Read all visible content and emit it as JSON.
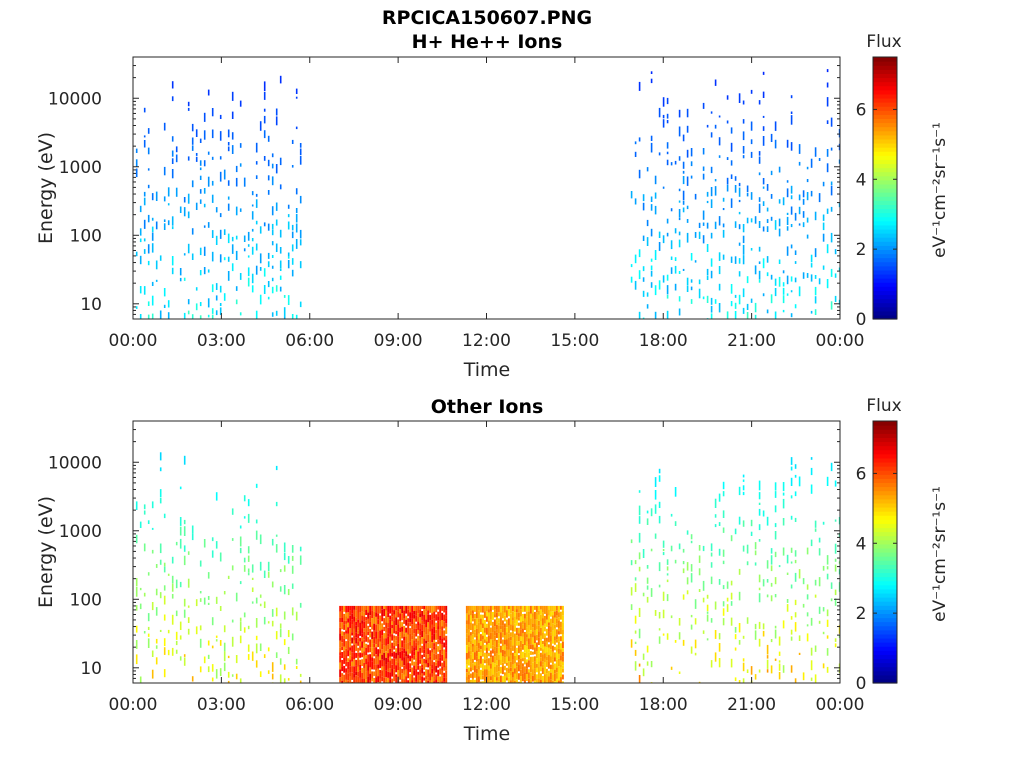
{
  "chart_data": [
    {
      "type": "heatmap",
      "title_lines": [
        "RPCICA150607.PNG",
        "H+ He++ Ions"
      ],
      "xlabel": "Time",
      "ylabel": "Energy (eV)",
      "x_tick_labels": [
        "00:00",
        "03:00",
        "06:00",
        "09:00",
        "12:00",
        "15:00",
        "18:00",
        "21:00",
        "00:00"
      ],
      "x_range_hours": [
        0,
        24
      ],
      "y_scale": "log",
      "y_range": [
        6,
        40000
      ],
      "y_ticks": [
        10,
        100,
        1000,
        10000
      ],
      "y_tick_labels": [
        "10",
        "100",
        "1000",
        "10000"
      ],
      "colorbar": {
        "title": "Flux",
        "unit": "eV⁻¹cm⁻²sr⁻¹s⁻¹",
        "range": [
          0,
          7.5
        ],
        "ticks": [
          0,
          2,
          4,
          6
        ],
        "tick_labels": [
          "0",
          "2",
          "4",
          "6"
        ],
        "colormap": "jet"
      },
      "data_regions": [
        {
          "t_start": 0.1,
          "t_end": 5.8,
          "e_min": 6,
          "e_max": 30000,
          "flux_low": 1.2,
          "flux_high": 3.0,
          "style": "sparse"
        },
        {
          "t_start": 16.9,
          "t_end": 24.0,
          "e_min": 6,
          "e_max": 30000,
          "flux_low": 1.2,
          "flux_high": 3.0,
          "style": "sparse"
        }
      ]
    },
    {
      "type": "heatmap",
      "title_lines": [
        "Other Ions"
      ],
      "xlabel": "Time",
      "ylabel": "Energy (eV)",
      "x_tick_labels": [
        "00:00",
        "03:00",
        "06:00",
        "09:00",
        "12:00",
        "15:00",
        "18:00",
        "21:00",
        "00:00"
      ],
      "x_range_hours": [
        0,
        24
      ],
      "y_scale": "log",
      "y_range": [
        6,
        40000
      ],
      "y_ticks": [
        10,
        100,
        1000,
        10000
      ],
      "y_tick_labels": [
        "10",
        "100",
        "1000",
        "10000"
      ],
      "colorbar": {
        "title": "Flux",
        "unit": "eV⁻¹cm⁻²sr⁻¹s⁻¹",
        "range": [
          0,
          7.5
        ],
        "ticks": [
          0,
          2,
          4,
          6
        ],
        "tick_labels": [
          "0",
          "2",
          "4",
          "6"
        ],
        "colormap": "jet"
      },
      "data_regions": [
        {
          "t_start": 0.1,
          "t_end": 5.8,
          "e_min": 6,
          "e_max": 15000,
          "flux_low": 2.5,
          "flux_high": 5.0,
          "style": "sparse"
        },
        {
          "t_start": 7.0,
          "t_end": 10.6,
          "e_min": 6,
          "e_max": 80,
          "flux_low": 4.0,
          "flux_high": 6.8,
          "style": "dense"
        },
        {
          "t_start": 11.3,
          "t_end": 14.6,
          "e_min": 6,
          "e_max": 80,
          "flux_low": 4.0,
          "flux_high": 5.8,
          "style": "dense"
        },
        {
          "t_start": 16.9,
          "t_end": 24.0,
          "e_min": 6,
          "e_max": 15000,
          "flux_low": 2.5,
          "flux_high": 5.2,
          "style": "sparse"
        }
      ]
    }
  ]
}
